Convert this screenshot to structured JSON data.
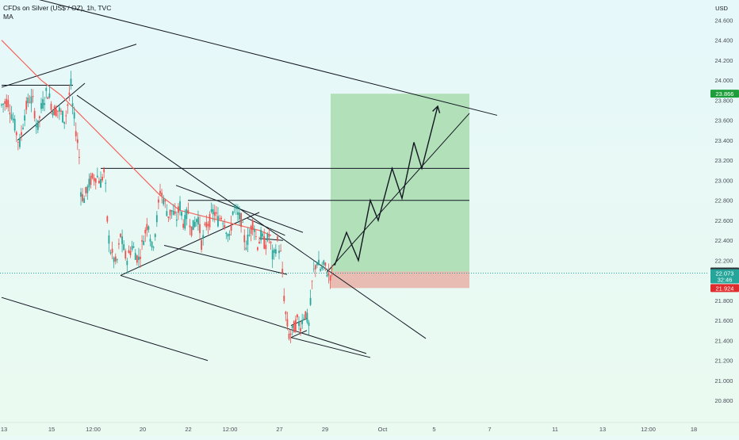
{
  "header": {
    "title": "CFDs on Silver (US$ / OZ), 1h, TVC",
    "indicator": "MA"
  },
  "colors": {
    "background": "#eafaf6",
    "up_candle": "#26a69a",
    "down_candle": "#ef5350",
    "ma_line": "#f2655d",
    "target_zone": "#a8dcae",
    "stop_zone": "#e8b4ac",
    "drawing_line": "#131722",
    "target_badge": "#1e9e3a",
    "stop_badge": "#e02c2c",
    "price_badge": "#2d3036"
  },
  "chart_data": {
    "type": "candlestick",
    "title": "CFDs on Silver (US$ / OZ), 1h, TVC",
    "currency": "USD",
    "y_axis": {
      "side": "right",
      "range": [
        20.7,
        24.8
      ],
      "tick_labels": [
        "24.600",
        "24.400",
        "24.200",
        "24.000",
        "23.800",
        "23.600",
        "23.400",
        "23.200",
        "23.000",
        "22.800",
        "22.600",
        "22.400",
        "22.200",
        "22.000",
        "21.800",
        "21.600",
        "21.400",
        "21.200",
        "21.000",
        "20.800"
      ],
      "price_labels": [
        {
          "value": 23.866,
          "label": "23.866",
          "role": "target"
        },
        {
          "value": 22.089,
          "label": "22.089",
          "role": "entry"
        },
        {
          "value": 22.073,
          "label": "22.073",
          "role": "last_price"
        },
        {
          "value": 21.924,
          "label": "21.924",
          "role": "stop"
        }
      ],
      "countdown": "32:46"
    },
    "x_axis": {
      "tick_labels": [
        "13",
        "15",
        "12:00",
        "20",
        "22",
        "12:00",
        "27",
        "29",
        "Oct",
        "5",
        "7",
        "11",
        "13",
        "12:00",
        "18"
      ],
      "x_range_index": [
        0,
        144
      ]
    },
    "grid": false,
    "price_keypoints": [
      [
        0,
        23.75
      ],
      [
        1.5,
        23.8
      ],
      [
        3,
        23.6
      ],
      [
        4.5,
        23.35
      ],
      [
        6,
        23.7
      ],
      [
        7,
        23.82
      ],
      [
        8,
        23.78
      ],
      [
        9,
        23.5
      ],
      [
        10,
        23.72
      ],
      [
        11.5,
        23.9
      ],
      [
        13,
        23.7
      ],
      [
        14.5,
        23.7
      ],
      [
        16,
        23.6
      ],
      [
        17.5,
        23.95
      ],
      [
        18,
        23.7
      ],
      [
        19.5,
        23.3
      ],
      [
        20,
        22.9
      ],
      [
        20.7,
        22.8
      ],
      [
        21.5,
        22.9
      ],
      [
        22.5,
        23.0
      ],
      [
        24,
        23.05
      ],
      [
        25,
        22.98
      ],
      [
        26,
        23.1
      ],
      [
        26.8,
        22.5
      ],
      [
        27.5,
        22.3
      ],
      [
        29,
        22.15
      ],
      [
        30,
        22.45
      ],
      [
        31.5,
        22.2
      ],
      [
        33,
        22.35
      ],
      [
        34.5,
        22.2
      ],
      [
        36,
        22.45
      ],
      [
        37,
        22.6
      ],
      [
        38,
        22.3
      ],
      [
        39,
        22.55
      ],
      [
        40,
        22.9
      ],
      [
        41,
        22.8
      ],
      [
        42,
        22.65
      ],
      [
        43,
        22.7
      ],
      [
        44,
        22.6
      ],
      [
        45,
        22.75
      ],
      [
        46,
        22.55
      ],
      [
        47,
        22.7
      ],
      [
        48,
        22.5
      ],
      [
        49.5,
        22.65
      ],
      [
        50.5,
        22.35
      ],
      [
        51.5,
        22.55
      ],
      [
        52.5,
        22.6
      ],
      [
        53.5,
        22.7
      ],
      [
        54.5,
        22.6
      ],
      [
        55.5,
        22.65
      ],
      [
        56.5,
        22.55
      ],
      [
        57.5,
        22.4
      ],
      [
        58.5,
        22.75
      ],
      [
        59.5,
        22.65
      ],
      [
        60.5,
        22.6
      ],
      [
        61.5,
        22.35
      ],
      [
        62.5,
        22.45
      ],
      [
        63.5,
        22.6
      ],
      [
        64.5,
        22.35
      ],
      [
        65.5,
        22.45
      ],
      [
        66.5,
        22.35
      ],
      [
        67.5,
        22.45
      ],
      [
        68.5,
        22.2
      ],
      [
        69.5,
        22.4
      ],
      [
        70.5,
        22.25
      ],
      [
        71.5,
        21.7
      ],
      [
        72.5,
        21.45
      ],
      [
        73.5,
        21.5
      ],
      [
        74.5,
        21.6
      ],
      [
        75.5,
        21.55
      ],
      [
        76.5,
        21.7
      ],
      [
        77.5,
        21.55
      ],
      [
        78.5,
        22.05
      ],
      [
        79.5,
        22.2
      ],
      [
        80.5,
        22.1
      ],
      [
        81.5,
        22.15
      ],
      [
        82.5,
        22.05
      ],
      [
        83.5,
        22.07
      ]
    ],
    "moving_average": [
      [
        0,
        24.4
      ],
      [
        5,
        24.2
      ],
      [
        10,
        24.0
      ],
      [
        15,
        23.85
      ],
      [
        20,
        23.65
      ],
      [
        25,
        23.45
      ],
      [
        30,
        23.25
      ],
      [
        35,
        23.05
      ],
      [
        40,
        22.85
      ],
      [
        45,
        22.7
      ],
      [
        50,
        22.65
      ],
      [
        55,
        22.6
      ],
      [
        60,
        22.55
      ],
      [
        65,
        22.5
      ],
      [
        68,
        22.45
      ]
    ],
    "annotations": {
      "target_zone": {
        "start_index": 83,
        "end_index": 118,
        "low": 22.089,
        "high": 23.866
      },
      "stop_zone": {
        "start_index": 83,
        "end_index": 118,
        "low": 21.924,
        "high": 22.089
      },
      "horizontal_levels": [
        23.12,
        22.8
      ],
      "projection_path": [
        [
          84,
          22.15
        ],
        [
          87,
          22.48
        ],
        [
          90,
          22.2
        ],
        [
          93,
          22.8
        ],
        [
          95,
          22.6
        ],
        [
          98.5,
          23.12
        ],
        [
          101,
          22.82
        ],
        [
          104,
          23.38
        ],
        [
          106,
          23.12
        ],
        [
          110,
          23.74
        ]
      ],
      "trend_lines": [
        [
          [
            0,
            24.9
          ],
          [
            125,
            23.65
          ]
        ],
        [
          [
            0,
            23.93
          ],
          [
            34,
            24.36
          ]
        ],
        [
          [
            4,
            23.4
          ],
          [
            21,
            23.97
          ]
        ],
        [
          [
            0,
            23.95
          ],
          [
            18,
            23.95
          ]
        ],
        [
          [
            19,
            23.85
          ],
          [
            107,
            21.42
          ]
        ],
        [
          [
            82,
            22.08
          ],
          [
            118,
            23.67
          ]
        ],
        [
          [
            25,
            23.12
          ],
          [
            118,
            23.12
          ]
        ],
        [
          [
            47,
            22.8
          ],
          [
            118,
            22.8
          ]
        ],
        [
          [
            30,
            22.05
          ],
          [
            65,
            22.68
          ]
        ],
        [
          [
            44,
            22.95
          ],
          [
            76,
            22.48
          ]
        ],
        [
          [
            41,
            22.35
          ],
          [
            72,
            22.06
          ]
        ],
        [
          [
            30,
            22.05
          ],
          [
            92,
            21.27
          ]
        ],
        [
          [
            73,
            21.43
          ],
          [
            93,
            21.23
          ]
        ],
        [
          [
            0,
            21.83
          ],
          [
            52,
            21.2
          ]
        ],
        [
          [
            62,
            22.62
          ],
          [
            71.5,
            22.45
          ]
        ],
        [
          [
            65,
            22.42
          ],
          [
            71,
            22.4
          ]
        ],
        [
          [
            73,
            21.55
          ],
          [
            77,
            21.62
          ]
        ],
        [
          [
            73,
            21.43
          ],
          [
            77,
            21.5
          ]
        ]
      ]
    }
  }
}
